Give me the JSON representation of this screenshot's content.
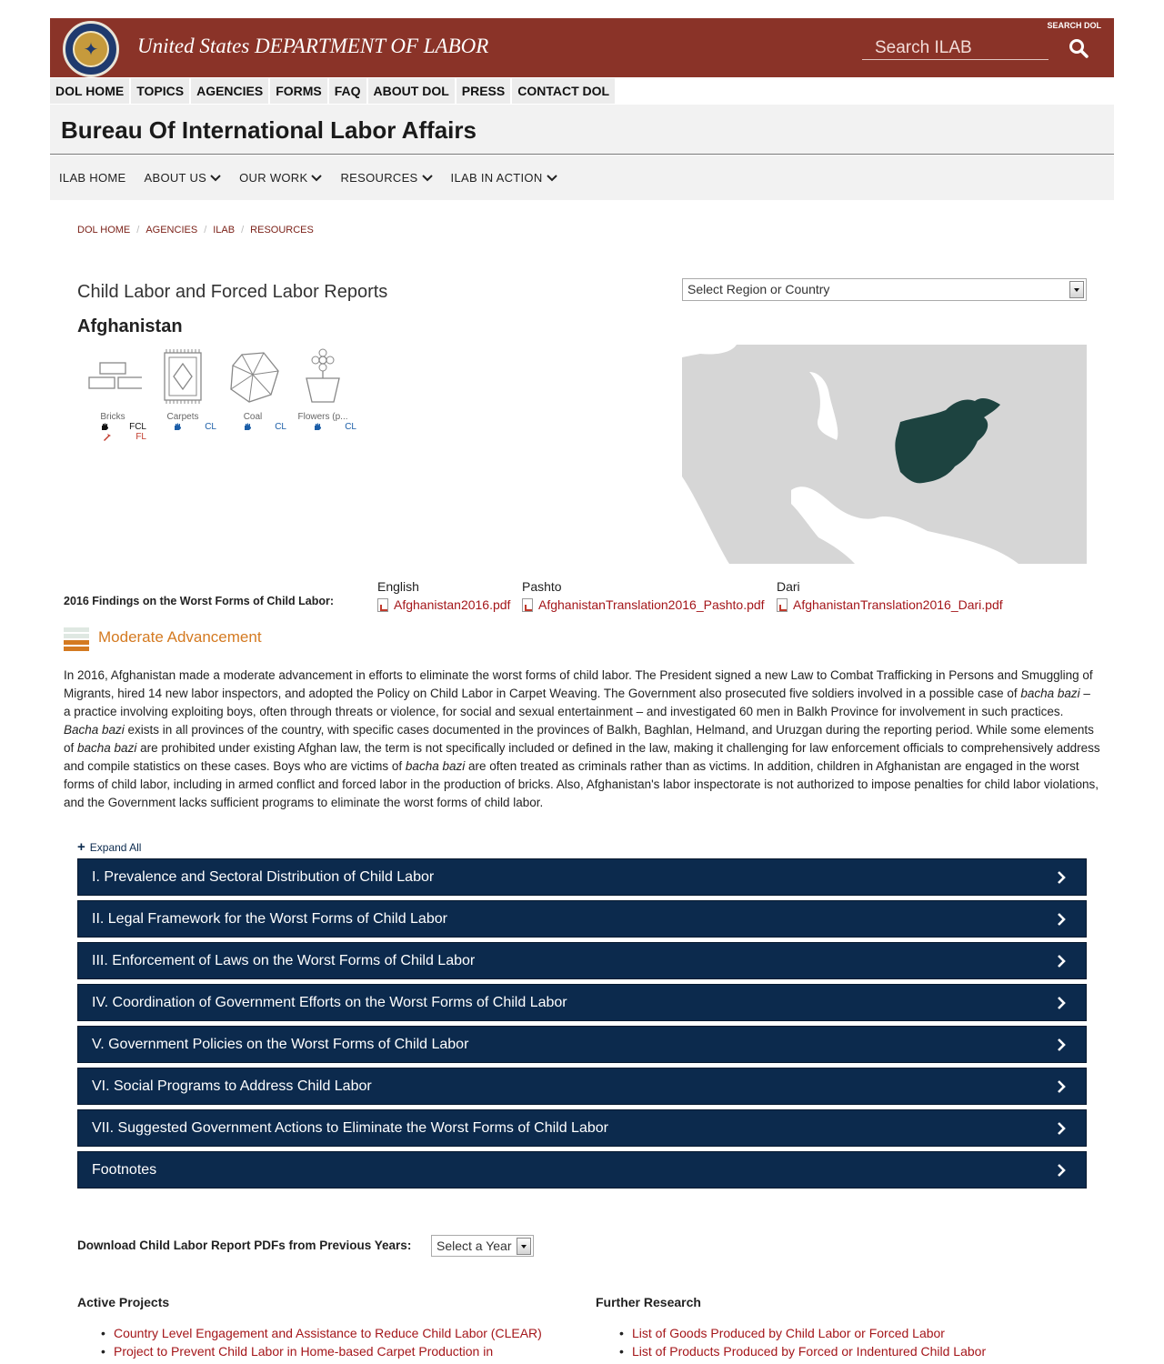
{
  "header": {
    "agency_title": "United States DEPARTMENT OF LABOR",
    "search_dol_label": "SEARCH DOL",
    "search_placeholder": "Search ILAB"
  },
  "topnav": [
    "DOL HOME",
    "TOPICS",
    "AGENCIES",
    "FORMS",
    "FAQ",
    "ABOUT DOL",
    "PRESS",
    "CONTACT DOL"
  ],
  "bureau_title": "Bureau Of International Labor Affairs",
  "subnav": [
    {
      "label": "ILAB HOME",
      "dropdown": false
    },
    {
      "label": "ABOUT US",
      "dropdown": true
    },
    {
      "label": "OUR WORK",
      "dropdown": true
    },
    {
      "label": "RESOURCES",
      "dropdown": true
    },
    {
      "label": "ILAB IN ACTION",
      "dropdown": true
    }
  ],
  "breadcrumb": [
    "DOL HOME",
    "AGENCIES",
    "ILAB",
    "RESOURCES"
  ],
  "page_title": "Child Labor and Forced Labor Reports",
  "country": "Afghanistan",
  "region_select": "Select Region or Country",
  "goods": [
    {
      "name": "Bricks",
      "icon": "bricks-icon",
      "tags": [
        {
          "code": "FCL",
          "kind": "fcl"
        },
        {
          "code": "FL",
          "kind": "fl"
        }
      ]
    },
    {
      "name": "Carpets",
      "icon": "carpet-icon",
      "tags": [
        {
          "code": "CL",
          "kind": "cl"
        }
      ]
    },
    {
      "name": "Coal",
      "icon": "coal-icon",
      "tags": [
        {
          "code": "CL",
          "kind": "cl"
        }
      ]
    },
    {
      "name": "Flowers (p...",
      "icon": "flower-icon",
      "tags": [
        {
          "code": "CL",
          "kind": "cl"
        }
      ]
    }
  ],
  "findings": {
    "label": "2016 Findings on the Worst Forms of Child Labor:",
    "languages": [
      {
        "lang": "English",
        "file": "Afghanistan2016.pdf"
      },
      {
        "lang": "Pashto",
        "file": "AfghanistanTranslation2016_Pashto.pdf"
      },
      {
        "lang": "Dari",
        "file": "AfghanistanTranslation2016_Dari.pdf"
      }
    ]
  },
  "assessment": "Moderate Advancement",
  "summary_parts": [
    {
      "t": "In 2016, Afghanistan made a moderate advancement in efforts to eliminate the worst forms of child labor. The President signed a new Law to Combat Trafficking in Persons and Smuggling of Migrants, hired 14 new labor inspectors, and adopted the Policy on Child Labor in Carpet Weaving. The Government also prosecuted five soldiers involved in a possible case of ",
      "i": false
    },
    {
      "t": "bacha bazi",
      "i": true
    },
    {
      "t": " – a practice involving exploiting boys, often through threats or violence, for social and sexual entertainment – and investigated 60 men in Balkh Province for involvement in such practices. ",
      "i": false
    },
    {
      "t": "Bacha bazi",
      "i": true
    },
    {
      "t": " exists in all provinces of the country, with specific cases documented in the provinces of Balkh, Baghlan, Helmand, and Uruzgan during the reporting period. While some elements of ",
      "i": false
    },
    {
      "t": "bacha bazi",
      "i": true
    },
    {
      "t": " are prohibited under existing Afghan law, the term is not specifically included or defined in the law, making it challenging for law enforcement officials to comprehensively address and compile statistics on these cases. Boys who are victims of ",
      "i": false
    },
    {
      "t": "bacha bazi",
      "i": true
    },
    {
      "t": " are often treated as criminals rather than as victims. In addition, children in Afghanistan are engaged in the worst forms of child labor, including in armed conflict and forced labor in the production of bricks. Also, Afghanistan's labor inspectorate is not authorized to impose penalties for child labor violations, and the Government lacks sufficient programs to eliminate the worst forms of child labor.",
      "i": false
    }
  ],
  "expand_all": "Expand All",
  "sections": [
    "I. Prevalence and Sectoral Distribution of Child Labor",
    "II. Legal Framework for the Worst Forms of Child Labor",
    "III. Enforcement of Laws on the Worst Forms of Child Labor",
    "IV. Coordination of Government Efforts on the Worst Forms of Child Labor",
    "V. Government Policies on the Worst Forms of Child Labor",
    "VI. Social Programs to Address Child Labor",
    "VII. Suggested Government Actions to Eliminate the Worst Forms of Child Labor",
    "Footnotes"
  ],
  "previous_years": {
    "label": "Download Child Labor Report PDFs from Previous Years:",
    "select": "Select a Year"
  },
  "active_projects": {
    "heading": "Active Projects",
    "items": [
      "Country Level Engagement and Assistance to Reduce Child Labor (CLEAR)",
      "Project to Prevent Child Labor in Home-based Carpet Production in"
    ]
  },
  "further_research": {
    "heading": "Further Research",
    "items": [
      "List of Goods Produced by Child Labor or Forced Labor",
      "List of Products Produced by Forced or Indentured Child Labor"
    ]
  },
  "colors": {
    "header_red": "#8a3328",
    "navy": "#0c2a4d",
    "link_red": "#a4161a",
    "advancement_orange": "#d47a21",
    "map_country": "#1d4340"
  }
}
